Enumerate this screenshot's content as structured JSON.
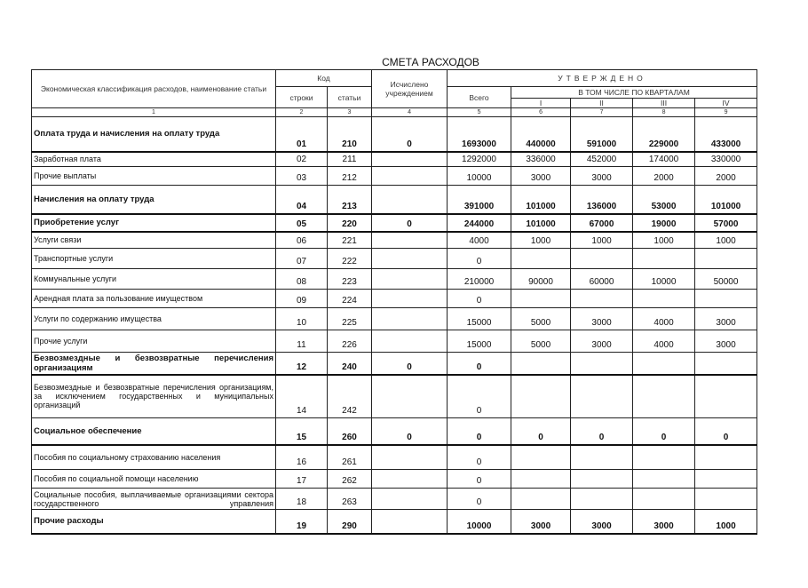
{
  "title": "СМЕТА РАСХОДОВ",
  "header": {
    "classification": "Экономическая классификация расходов, наименование статьи",
    "code": "Код",
    "row_code": "строки",
    "article": "статьи",
    "calculated": "Исчислено учреждением",
    "approved": "УТВЕРЖДЕНО",
    "total": "Всего",
    "by_quarters": "В ТОМ ЧИСЛЕ ПО КВАРТАЛАМ",
    "quarters": [
      "I",
      "II",
      "III",
      "IV"
    ],
    "col_numbers": [
      "1",
      "2",
      "3",
      "4",
      "5",
      "6",
      "7",
      "8",
      "9"
    ]
  },
  "rows": [
    {
      "name": "Оплата труда и начисления на оплату труда",
      "line": "01",
      "article": "210",
      "calc": "0",
      "total": "1693000",
      "q": [
        "440000",
        "591000",
        "229000",
        "433000"
      ],
      "bold": true
    },
    {
      "name": "Заработная плата",
      "line": "02",
      "article": "211",
      "calc": "",
      "total": "1292000",
      "q": [
        "336000",
        "452000",
        "174000",
        "330000"
      ]
    },
    {
      "name": "Прочие выплаты",
      "line": "03",
      "article": "212",
      "calc": "",
      "total": "10000",
      "q": [
        "3000",
        "3000",
        "2000",
        "2000"
      ]
    },
    {
      "name": "Начисления на оплату труда",
      "line": "04",
      "article": "213",
      "calc": "",
      "total": "391000",
      "q": [
        "101000",
        "136000",
        "53000",
        "101000"
      ],
      "bold": true
    },
    {
      "name": "Приобретение услуг",
      "line": "05",
      "article": "220",
      "calc": "0",
      "total": "244000",
      "q": [
        "101000",
        "67000",
        "19000",
        "57000"
      ],
      "bold": true
    },
    {
      "name": "Услуги связи",
      "line": "06",
      "article": "221",
      "calc": "",
      "total": "4000",
      "q": [
        "1000",
        "1000",
        "1000",
        "1000"
      ]
    },
    {
      "name": "Транспортные услуги",
      "line": "07",
      "article": "222",
      "calc": "",
      "total": "0",
      "q": [
        "",
        "",
        "",
        ""
      ]
    },
    {
      "name": "Коммунальные услуги",
      "line": "08",
      "article": "223",
      "calc": "",
      "total": "210000",
      "q": [
        "90000",
        "60000",
        "10000",
        "50000"
      ]
    },
    {
      "name": "Арендная плата за пользование имуществом",
      "line": "09",
      "article": "224",
      "calc": "",
      "total": "0",
      "q": [
        "",
        "",
        "",
        ""
      ]
    },
    {
      "name": "Услуги по содержанию имущества",
      "line": "10",
      "article": "225",
      "calc": "",
      "total": "15000",
      "q": [
        "5000",
        "3000",
        "4000",
        "3000"
      ]
    },
    {
      "name": "Прочие услуги",
      "line": "11",
      "article": "226",
      "calc": "",
      "total": "15000",
      "q": [
        "5000",
        "3000",
        "4000",
        "3000"
      ]
    },
    {
      "name": "Безвозмездные и безвозвратные перечисления организациям",
      "line": "12",
      "article": "240",
      "calc": "0",
      "total": "0",
      "q": [
        "",
        "",
        "",
        ""
      ],
      "bold": true
    },
    {
      "name": "Безвозмездные и безвозвратные перечисления организациям, за исключением государственных и муниципальных организаций",
      "line": "14",
      "article": "242",
      "calc": "",
      "total": "0",
      "q": [
        "",
        "",
        "",
        ""
      ]
    },
    {
      "name": "Социальное обеспечение",
      "line": "15",
      "article": "260",
      "calc": "0",
      "total": "0",
      "q": [
        "0",
        "0",
        "0",
        "0"
      ],
      "bold": true
    },
    {
      "name": "Пособия по социальному страхованию населения",
      "line": "16",
      "article": "261",
      "calc": "",
      "total": "0",
      "q": [
        "",
        "",
        "",
        ""
      ]
    },
    {
      "name": "Пособия по социальной помощи населению",
      "line": "17",
      "article": "262",
      "calc": "",
      "total": "0",
      "q": [
        "",
        "",
        "",
        ""
      ]
    },
    {
      "name": "Социальные пособия, выплачиваемые организациями сектора государственного управления",
      "line": "18",
      "article": "263",
      "calc": "",
      "total": "0",
      "q": [
        "",
        "",
        "",
        ""
      ]
    },
    {
      "name": "Прочие расходы",
      "line": "19",
      "article": "290",
      "calc": "",
      "total": "10000",
      "q": [
        "3000",
        "3000",
        "3000",
        "1000"
      ],
      "bold": true
    }
  ]
}
